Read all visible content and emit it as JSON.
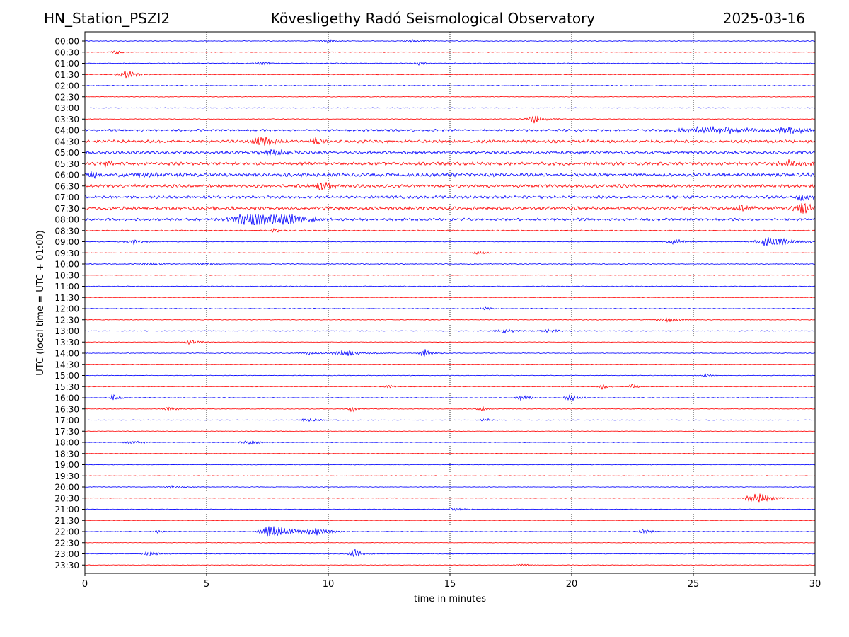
{
  "header": {
    "station": "HN_Station_PSZI2",
    "observatory": "Kövesligethy Radó Seismological Observatory",
    "date": "2025-03-16"
  },
  "chart_data": {
    "type": "line",
    "title": "Kövesligethy Radó Seismological Observatory",
    "xlabel": "time in minutes",
    "ylabel": "UTC (local time = UTC + 01:00)",
    "xlim": [
      0,
      30
    ],
    "x_ticks": [
      "0",
      "5",
      "10",
      "15",
      "20",
      "25",
      "30"
    ],
    "x_tick_values": [
      0,
      5,
      10,
      15,
      20,
      25,
      30
    ],
    "grid": "vertical dotted at each x tick",
    "colors": {
      "even_row": "#0000ff",
      "odd_row": "#ff0000",
      "grid": "#000000"
    },
    "rows": [
      {
        "label": "00:00",
        "noise": 0.6,
        "events": [
          {
            "t": 10.0,
            "amp": 2,
            "dur": 0.4
          },
          {
            "t": 13.5,
            "amp": 1.5,
            "dur": 0.5
          }
        ]
      },
      {
        "label": "00:30",
        "noise": 0.6,
        "events": [
          {
            "t": 1.3,
            "amp": 1.5,
            "dur": 0.4
          }
        ]
      },
      {
        "label": "01:00",
        "noise": 0.7,
        "events": [
          {
            "t": 7.3,
            "amp": 2,
            "dur": 0.5
          },
          {
            "t": 13.8,
            "amp": 2,
            "dur": 0.4
          }
        ]
      },
      {
        "label": "01:30",
        "noise": 0.6,
        "events": [
          {
            "t": 1.7,
            "amp": 5,
            "dur": 0.4
          }
        ]
      },
      {
        "label": "02:00",
        "noise": 0.7,
        "events": []
      },
      {
        "label": "02:30",
        "noise": 0.5,
        "events": []
      },
      {
        "label": "03:00",
        "noise": 0.6,
        "events": []
      },
      {
        "label": "03:30",
        "noise": 0.6,
        "events": [
          {
            "t": 18.5,
            "amp": 4,
            "dur": 0.4
          }
        ]
      },
      {
        "label": "04:00",
        "noise": 1.8,
        "events": [
          {
            "t": 26.0,
            "amp": 4,
            "dur": 2.0
          },
          {
            "t": 29.0,
            "amp": 3,
            "dur": 1.0
          }
        ]
      },
      {
        "label": "04:30",
        "noise": 2.5,
        "events": [
          {
            "t": 7.3,
            "amp": 4,
            "dur": 0.8
          },
          {
            "t": 9.5,
            "amp": 3,
            "dur": 0.6
          }
        ]
      },
      {
        "label": "05:00",
        "noise": 2.4,
        "events": [
          {
            "t": 8.0,
            "amp": 3,
            "dur": 1.0
          }
        ]
      },
      {
        "label": "05:30",
        "noise": 2.6,
        "events": [
          {
            "t": 0.9,
            "amp": 3,
            "dur": 0.3
          },
          {
            "t": 29.0,
            "amp": 3,
            "dur": 1.0
          }
        ]
      },
      {
        "label": "06:00",
        "noise": 3.0,
        "events": [
          {
            "t": 0.4,
            "amp": 4,
            "dur": 0.6
          },
          {
            "t": 2.5,
            "amp": 3,
            "dur": 0.5
          }
        ]
      },
      {
        "label": "06:30",
        "noise": 2.6,
        "events": [
          {
            "t": 9.8,
            "amp": 5,
            "dur": 0.5
          }
        ]
      },
      {
        "label": "07:00",
        "noise": 2.4,
        "events": [
          {
            "t": 29.5,
            "amp": 3,
            "dur": 0.5
          }
        ]
      },
      {
        "label": "07:30",
        "noise": 2.8,
        "events": [
          {
            "t": 29.5,
            "amp": 6,
            "dur": 0.6
          },
          {
            "t": 27.0,
            "amp": 4,
            "dur": 0.5
          }
        ]
      },
      {
        "label": "08:00",
        "noise": 2.2,
        "events": [
          {
            "t": 7.0,
            "amp": 9,
            "dur": 1.2
          },
          {
            "t": 8.3,
            "amp": 5,
            "dur": 0.8
          }
        ]
      },
      {
        "label": "08:30",
        "noise": 0.9,
        "events": [
          {
            "t": 7.8,
            "amp": 2,
            "dur": 0.3
          }
        ]
      },
      {
        "label": "09:00",
        "noise": 0.6,
        "events": [
          {
            "t": 2.0,
            "amp": 2,
            "dur": 0.6
          },
          {
            "t": 24.2,
            "amp": 3,
            "dur": 0.4
          },
          {
            "t": 28.3,
            "amp": 5,
            "dur": 0.9
          }
        ]
      },
      {
        "label": "09:30",
        "noise": 0.5,
        "events": [
          {
            "t": 16.2,
            "amp": 2.5,
            "dur": 0.3
          }
        ]
      },
      {
        "label": "10:00",
        "noise": 0.7,
        "events": [
          {
            "t": 2.7,
            "amp": 1.5,
            "dur": 0.5
          },
          {
            "t": 5.0,
            "amp": 1.5,
            "dur": 0.5
          }
        ]
      },
      {
        "label": "10:30",
        "noise": 0.5,
        "events": []
      },
      {
        "label": "11:00",
        "noise": 0.6,
        "events": []
      },
      {
        "label": "11:30",
        "noise": 0.5,
        "events": []
      },
      {
        "label": "12:00",
        "noise": 0.6,
        "events": [
          {
            "t": 16.5,
            "amp": 1.5,
            "dur": 0.4
          }
        ]
      },
      {
        "label": "12:30",
        "noise": 0.6,
        "events": [
          {
            "t": 24.0,
            "amp": 2.5,
            "dur": 0.6
          }
        ]
      },
      {
        "label": "13:00",
        "noise": 0.7,
        "events": [
          {
            "t": 17.2,
            "amp": 2,
            "dur": 0.6
          },
          {
            "t": 19.0,
            "amp": 1.5,
            "dur": 0.8
          }
        ]
      },
      {
        "label": "13:30",
        "noise": 0.4,
        "events": [
          {
            "t": 4.4,
            "amp": 2.5,
            "dur": 0.4
          }
        ]
      },
      {
        "label": "14:00",
        "noise": 0.6,
        "events": [
          {
            "t": 10.8,
            "amp": 3,
            "dur": 0.8
          },
          {
            "t": 14.0,
            "amp": 5,
            "dur": 0.3
          },
          {
            "t": 9.2,
            "amp": 1.5,
            "dur": 0.5
          }
        ]
      },
      {
        "label": "14:30",
        "noise": 0.4,
        "events": []
      },
      {
        "label": "15:00",
        "noise": 0.5,
        "events": [
          {
            "t": 25.5,
            "amp": 2,
            "dur": 0.3
          }
        ]
      },
      {
        "label": "15:30",
        "noise": 0.6,
        "events": [
          {
            "t": 21.3,
            "amp": 3,
            "dur": 0.2
          },
          {
            "t": 22.5,
            "amp": 3,
            "dur": 0.2
          },
          {
            "t": 12.5,
            "amp": 1.5,
            "dur": 0.4
          }
        ]
      },
      {
        "label": "16:00",
        "noise": 0.6,
        "events": [
          {
            "t": 1.2,
            "amp": 5,
            "dur": 0.2
          },
          {
            "t": 18.0,
            "amp": 3,
            "dur": 0.4
          },
          {
            "t": 20.0,
            "amp": 3,
            "dur": 0.4
          }
        ]
      },
      {
        "label": "16:30",
        "noise": 0.5,
        "events": [
          {
            "t": 3.5,
            "amp": 2,
            "dur": 0.4
          },
          {
            "t": 11.0,
            "amp": 3,
            "dur": 0.2
          },
          {
            "t": 16.3,
            "amp": 3,
            "dur": 0.2
          }
        ]
      },
      {
        "label": "17:00",
        "noise": 0.5,
        "events": [
          {
            "t": 9.3,
            "amp": 1.5,
            "dur": 0.7
          },
          {
            "t": 16.5,
            "amp": 1.5,
            "dur": 0.4
          }
        ]
      },
      {
        "label": "17:30",
        "noise": 0.4,
        "events": []
      },
      {
        "label": "18:00",
        "noise": 0.5,
        "events": [
          {
            "t": 2.0,
            "amp": 1.5,
            "dur": 0.6
          },
          {
            "t": 6.8,
            "amp": 2,
            "dur": 0.6
          }
        ]
      },
      {
        "label": "18:30",
        "noise": 0.4,
        "events": []
      },
      {
        "label": "19:00",
        "noise": 0.5,
        "events": []
      },
      {
        "label": "19:30",
        "noise": 0.5,
        "events": []
      },
      {
        "label": "20:00",
        "noise": 0.5,
        "events": [
          {
            "t": 3.7,
            "amp": 1.5,
            "dur": 0.5
          }
        ]
      },
      {
        "label": "20:30",
        "noise": 0.5,
        "events": [
          {
            "t": 27.6,
            "amp": 6,
            "dur": 0.6
          }
        ]
      },
      {
        "label": "21:00",
        "noise": 0.5,
        "events": [
          {
            "t": 15.3,
            "amp": 1.5,
            "dur": 0.5
          }
        ]
      },
      {
        "label": "21:30",
        "noise": 0.4,
        "events": []
      },
      {
        "label": "22:00",
        "noise": 0.5,
        "events": [
          {
            "t": 7.8,
            "amp": 6,
            "dur": 0.8
          },
          {
            "t": 9.5,
            "amp": 3,
            "dur": 0.8
          },
          {
            "t": 3.0,
            "amp": 1.5,
            "dur": 0.3
          },
          {
            "t": 23.0,
            "amp": 3,
            "dur": 0.3
          }
        ]
      },
      {
        "label": "22:30",
        "noise": 0.4,
        "events": []
      },
      {
        "label": "23:00",
        "noise": 0.5,
        "events": [
          {
            "t": 2.7,
            "amp": 2.5,
            "dur": 0.4
          },
          {
            "t": 11.1,
            "amp": 5,
            "dur": 0.3
          }
        ]
      },
      {
        "label": "23:30",
        "noise": 0.4,
        "events": [
          {
            "t": 18.0,
            "amp": 1.5,
            "dur": 0.3
          }
        ]
      }
    ]
  }
}
